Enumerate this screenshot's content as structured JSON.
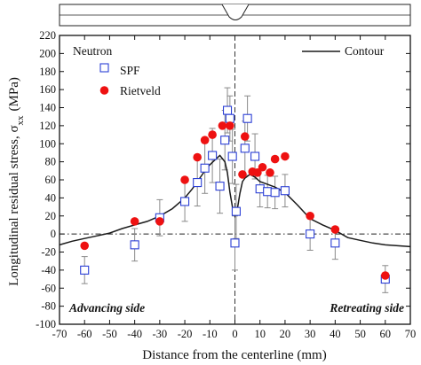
{
  "chart_data": {
    "type": "scatter",
    "xlabel": "Distance from the centerline (mm)",
    "ylabel": "Longitudinal residual stress, σ",
    "ylabel_sub": "xx",
    "ylabel_unit": "(MPa)",
    "xlim": [
      -70,
      70
    ],
    "ylim": [
      -100,
      220
    ],
    "xticks": [
      -70,
      -60,
      -50,
      -40,
      -30,
      -20,
      -10,
      0,
      10,
      20,
      30,
      40,
      50,
      60,
      70
    ],
    "yticks": [
      -100,
      -80,
      -60,
      -40,
      -20,
      0,
      20,
      40,
      60,
      80,
      100,
      120,
      140,
      160,
      180,
      200,
      220
    ],
    "legend_title": "Neutron",
    "legend_right": "Contour",
    "legend_location": "top",
    "annotations": {
      "left": "Advancing side",
      "right": "Retreating side"
    },
    "colors": {
      "spf": "#2b3fd6",
      "rietveld": "#ee1111",
      "contour": "#1a1a1a",
      "errorbar": "#8a8a8a"
    },
    "series": [
      {
        "name": "SPF",
        "marker": "open-square",
        "points": [
          {
            "x": -60,
            "y": -40,
            "err": 15
          },
          {
            "x": -40,
            "y": -12,
            "err": 18
          },
          {
            "x": -30,
            "y": 18,
            "err": 20
          },
          {
            "x": -20,
            "y": 36,
            "err": 22
          },
          {
            "x": -15,
            "y": 57,
            "err": 26
          },
          {
            "x": -12,
            "y": 73,
            "err": 28
          },
          {
            "x": -9,
            "y": 87,
            "err": 30
          },
          {
            "x": -6,
            "y": 53,
            "err": 30
          },
          {
            "x": -4,
            "y": 104,
            "err": 33
          },
          {
            "x": -3,
            "y": 137,
            "err": 25
          },
          {
            "x": -2,
            "y": 128,
            "err": 25
          },
          {
            "x": -1,
            "y": 86,
            "err": 30
          },
          {
            "x": 0,
            "y": -10,
            "err": 30
          },
          {
            "x": 0.5,
            "y": 25,
            "err": 30
          },
          {
            "x": 4,
            "y": 95,
            "err": 30
          },
          {
            "x": 5,
            "y": 128,
            "err": 25
          },
          {
            "x": 8,
            "y": 86,
            "err": 25
          },
          {
            "x": 10,
            "y": 50,
            "err": 20
          },
          {
            "x": 13,
            "y": 47,
            "err": 18
          },
          {
            "x": 16,
            "y": 46,
            "err": 18
          },
          {
            "x": 20,
            "y": 48,
            "err": 18
          },
          {
            "x": 30,
            "y": 0,
            "err": 18
          },
          {
            "x": 40,
            "y": -10,
            "err": 18
          },
          {
            "x": 60,
            "y": -50,
            "err": 15
          }
        ]
      },
      {
        "name": "Rietveld",
        "marker": "filled-circle",
        "points": [
          {
            "x": -60,
            "y": -13
          },
          {
            "x": -40,
            "y": 14
          },
          {
            "x": -30,
            "y": 14
          },
          {
            "x": -20,
            "y": 60
          },
          {
            "x": -15,
            "y": 85
          },
          {
            "x": -12,
            "y": 104
          },
          {
            "x": -9,
            "y": 110
          },
          {
            "x": -5,
            "y": 120
          },
          {
            "x": -2,
            "y": 120
          },
          {
            "x": 3,
            "y": 66
          },
          {
            "x": 4,
            "y": 108
          },
          {
            "x": 7,
            "y": 69
          },
          {
            "x": 9,
            "y": 68
          },
          {
            "x": 11,
            "y": 74
          },
          {
            "x": 14,
            "y": 68
          },
          {
            "x": 16,
            "y": 83
          },
          {
            "x": 20,
            "y": 86
          },
          {
            "x": 30,
            "y": 20
          },
          {
            "x": 40,
            "y": 5
          },
          {
            "x": 60,
            "y": -46
          }
        ]
      },
      {
        "name": "Contour",
        "marker": "line",
        "points": [
          {
            "x": -70,
            "y": -12
          },
          {
            "x": -65,
            "y": -8
          },
          {
            "x": -60,
            "y": -5
          },
          {
            "x": -55,
            "y": -2
          },
          {
            "x": -50,
            "y": 1
          },
          {
            "x": -45,
            "y": 6
          },
          {
            "x": -40,
            "y": 10
          },
          {
            "x": -35,
            "y": 14
          },
          {
            "x": -30,
            "y": 20
          },
          {
            "x": -25,
            "y": 28
          },
          {
            "x": -20,
            "y": 40
          },
          {
            "x": -17,
            "y": 50
          },
          {
            "x": -14,
            "y": 62
          },
          {
            "x": -11,
            "y": 74
          },
          {
            "x": -8,
            "y": 82
          },
          {
            "x": -6,
            "y": 87
          },
          {
            "x": -4,
            "y": 80
          },
          {
            "x": -3,
            "y": 68
          },
          {
            "x": -2,
            "y": 46
          },
          {
            "x": -1,
            "y": 30
          },
          {
            "x": 0,
            "y": 20
          },
          {
            "x": 1,
            "y": 28
          },
          {
            "x": 2,
            "y": 45
          },
          {
            "x": 3,
            "y": 58
          },
          {
            "x": 4,
            "y": 62
          },
          {
            "x": 6,
            "y": 66
          },
          {
            "x": 8,
            "y": 63
          },
          {
            "x": 10,
            "y": 58
          },
          {
            "x": 13,
            "y": 55
          },
          {
            "x": 16,
            "y": 52
          },
          {
            "x": 20,
            "y": 46
          },
          {
            "x": 25,
            "y": 32
          },
          {
            "x": 30,
            "y": 17
          },
          {
            "x": 35,
            "y": 10
          },
          {
            "x": 40,
            "y": 4
          },
          {
            "x": 45,
            "y": -4
          },
          {
            "x": 50,
            "y": -7
          },
          {
            "x": 55,
            "y": -10
          },
          {
            "x": 60,
            "y": -12
          },
          {
            "x": 65,
            "y": -13
          },
          {
            "x": 70,
            "y": -14
          }
        ]
      }
    ]
  }
}
